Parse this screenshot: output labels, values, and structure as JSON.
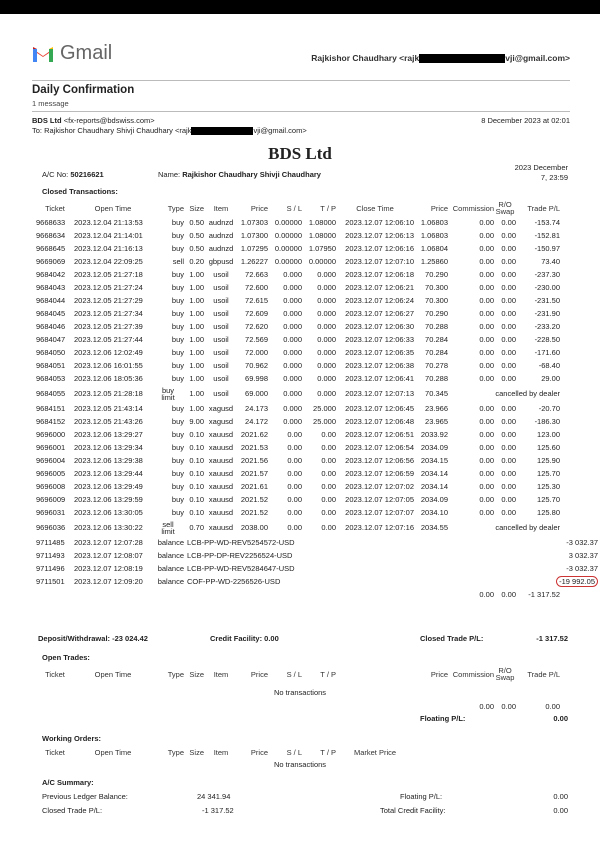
{
  "gmail": {
    "logo_text": "Gmail",
    "account": "Rajkishor Chaudhary <rajk",
    "account_end": "vji@gmail.com>"
  },
  "email": {
    "subject": "Daily Confirmation",
    "count": "1 message",
    "from_name": "BDS Ltd",
    "from_addr": "<fx-reports@bdswiss.com>",
    "to": "To: Rajkishor Chaudhary Shivji Chaudhary <rajk",
    "to_end": "vji@gmail.com>",
    "date": "8 December 2023 at 02:01"
  },
  "report": {
    "title": "BDS Ltd",
    "ac_label": "A/C No:",
    "ac_no": "50216621",
    "name_label": "Name:",
    "name": "Rajkishor Chaudhary Shivji Chaudhary",
    "date_line1": "2023 December",
    "date_line2": "7, 23:59"
  },
  "closed": {
    "heading": "Closed Transactions:",
    "headers": [
      "Ticket",
      "Open Time",
      "Type",
      "Size",
      "Item",
      "Price",
      "S / L",
      "T / P",
      "Close Time",
      "Price",
      "Commission",
      "R/O Swap",
      "Trade P/L"
    ],
    "rows": [
      [
        "9668633",
        "2023.12.04 21:13:53",
        "buy",
        "0.50",
        "audnzd",
        "1.07303",
        "0.00000",
        "1.08000",
        "2023.12.07 12:06:10",
        "1.06803",
        "0.00",
        "0.00",
        "-153.74"
      ],
      [
        "9668634",
        "2023.12.04 21:14:01",
        "buy",
        "0.50",
        "audnzd",
        "1.07300",
        "0.00000",
        "1.08000",
        "2023.12.07 12:06:13",
        "1.06803",
        "0.00",
        "0.00",
        "-152.81"
      ],
      [
        "9668645",
        "2023.12.04 21:16:13",
        "buy",
        "0.50",
        "audnzd",
        "1.07295",
        "0.00000",
        "1.07950",
        "2023.12.07 12:06:16",
        "1.06804",
        "0.00",
        "0.00",
        "-150.97"
      ],
      [
        "9669069",
        "2023.12.04 22:09:25",
        "sell",
        "0.20",
        "gbpusd",
        "1.26227",
        "0.00000",
        "0.00000",
        "2023.12.07 12:07:10",
        "1.25860",
        "0.00",
        "0.00",
        "73.40"
      ],
      [
        "9684042",
        "2023.12.05 21:27:18",
        "buy",
        "1.00",
        "usoil",
        "72.663",
        "0.000",
        "0.000",
        "2023.12.07 12:06:18",
        "70.290",
        "0.00",
        "0.00",
        "-237.30"
      ],
      [
        "9684043",
        "2023.12.05 21:27:24",
        "buy",
        "1.00",
        "usoil",
        "72.600",
        "0.000",
        "0.000",
        "2023.12.07 12:06:21",
        "70.300",
        "0.00",
        "0.00",
        "-230.00"
      ],
      [
        "9684044",
        "2023.12.05 21:27:29",
        "buy",
        "1.00",
        "usoil",
        "72.615",
        "0.000",
        "0.000",
        "2023.12.07 12:06:24",
        "70.300",
        "0.00",
        "0.00",
        "-231.50"
      ],
      [
        "9684045",
        "2023.12.05 21:27:34",
        "buy",
        "1.00",
        "usoil",
        "72.609",
        "0.000",
        "0.000",
        "2023.12.07 12:06:27",
        "70.290",
        "0.00",
        "0.00",
        "-231.90"
      ],
      [
        "9684046",
        "2023.12.05 21:27:39",
        "buy",
        "1.00",
        "usoil",
        "72.620",
        "0.000",
        "0.000",
        "2023.12.07 12:06:30",
        "70.288",
        "0.00",
        "0.00",
        "-233.20"
      ],
      [
        "9684047",
        "2023.12.05 21:27:44",
        "buy",
        "1.00",
        "usoil",
        "72.569",
        "0.000",
        "0.000",
        "2023.12.07 12:06:33",
        "70.284",
        "0.00",
        "0.00",
        "-228.50"
      ],
      [
        "9684050",
        "2023.12.06 12:02:49",
        "buy",
        "1.00",
        "usoil",
        "72.000",
        "0.000",
        "0.000",
        "2023.12.07 12:06:35",
        "70.284",
        "0.00",
        "0.00",
        "-171.60"
      ],
      [
        "9684051",
        "2023.12.06 16:01:55",
        "buy",
        "1.00",
        "usoil",
        "70.962",
        "0.000",
        "0.000",
        "2023.12.07 12:06:38",
        "70.278",
        "0.00",
        "0.00",
        "-68.40"
      ],
      [
        "9684053",
        "2023.12.06 18:05:36",
        "buy",
        "1.00",
        "usoil",
        "69.998",
        "0.000",
        "0.000",
        "2023.12.07 12:06:41",
        "70.288",
        "0.00",
        "0.00",
        "29.00"
      ],
      [
        "9684055",
        "2023.12.05 21:28:18",
        "buy limit",
        "1.00",
        "usoil",
        "69.000",
        "0.000",
        "0.000",
        "2023.12.07 12:07:13",
        "70.345",
        "cancelled by dealer"
      ],
      [
        "9684151",
        "2023.12.05 21:43:14",
        "buy",
        "1.00",
        "xagusd",
        "24.173",
        "0.000",
        "25.000",
        "2023.12.07 12:06:45",
        "23.966",
        "0.00",
        "0.00",
        "-20.70"
      ],
      [
        "9684152",
        "2023.12.05 21:43:26",
        "buy",
        "9.00",
        "xagusd",
        "24.172",
        "0.000",
        "25.000",
        "2023.12.07 12:06:48",
        "23.965",
        "0.00",
        "0.00",
        "-186.30"
      ],
      [
        "9696000",
        "2023.12.06 13:29:27",
        "buy",
        "0.10",
        "xauusd",
        "2021.62",
        "0.00",
        "0.00",
        "2023.12.07 12:06:51",
        "2033.92",
        "0.00",
        "0.00",
        "123.00"
      ],
      [
        "9696001",
        "2023.12.06 13:29:34",
        "buy",
        "0.10",
        "xauusd",
        "2021.53",
        "0.00",
        "0.00",
        "2023.12.07 12:06:54",
        "2034.09",
        "0.00",
        "0.00",
        "125.60"
      ],
      [
        "9696004",
        "2023.12.06 13:29:38",
        "buy",
        "0.10",
        "xauusd",
        "2021.56",
        "0.00",
        "0.00",
        "2023.12.07 12:06:56",
        "2034.15",
        "0.00",
        "0.00",
        "125.90"
      ],
      [
        "9696005",
        "2023.12.06 13:29:44",
        "buy",
        "0.10",
        "xauusd",
        "2021.57",
        "0.00",
        "0.00",
        "2023.12.07 12:06:59",
        "2034.14",
        "0.00",
        "0.00",
        "125.70"
      ],
      [
        "9696008",
        "2023.12.06 13:29:49",
        "buy",
        "0.10",
        "xauusd",
        "2021.61",
        "0.00",
        "0.00",
        "2023.12.07 12:07:02",
        "2034.14",
        "0.00",
        "0.00",
        "125.30"
      ],
      [
        "9696009",
        "2023.12.06 13:29:59",
        "buy",
        "0.10",
        "xauusd",
        "2021.52",
        "0.00",
        "0.00",
        "2023.12.07 12:07:05",
        "2034.09",
        "0.00",
        "0.00",
        "125.70"
      ],
      [
        "9696031",
        "2023.12.06 13:30:05",
        "buy",
        "0.10",
        "xauusd",
        "2021.52",
        "0.00",
        "0.00",
        "2023.12.07 12:07:07",
        "2034.10",
        "0.00",
        "0.00",
        "125.80"
      ],
      [
        "9696036",
        "2023.12.06 13:30:22",
        "sell limit",
        "0.70",
        "xauusd",
        "2038.00",
        "0.00",
        "0.00",
        "2023.12.07 12:07:16",
        "2034.55",
        "cancelled by dealer"
      ]
    ],
    "balance_rows": [
      [
        "9711485",
        "2023.12.07 12:07:28",
        "balance",
        "LCB-PP-WD-REV5254572-USD",
        "-3 032.37"
      ],
      [
        "9711493",
        "2023.12.07 12:08:07",
        "balance",
        "LCB-PP-DP-REV2256524-USD",
        "3 032.37"
      ],
      [
        "9711496",
        "2023.12.07 12:08:19",
        "balance",
        "LCB-PP-WD-REV5284647-USD",
        "-3 032.37"
      ],
      [
        "9711501",
        "2023.12.07 12:09:20",
        "balance",
        "COF-PP-WD-2256526-USD",
        "-19 992.05"
      ]
    ],
    "totals": [
      "0.00",
      "0.00",
      "-1 317.52"
    ],
    "deposit": "Deposit/Withdrawal: -23 024.42",
    "credit": "Credit Facility: 0.00",
    "closed_pl_label": "Closed Trade P/L:",
    "closed_pl": "-1 317.52"
  },
  "open": {
    "heading": "Open Trades:",
    "headers": [
      "Ticket",
      "Open Time",
      "Type",
      "Size",
      "Item",
      "Price",
      "S / L",
      "T / P",
      "Price",
      "Commission",
      "R/O Swap",
      "Trade P/L"
    ],
    "empty": "No transactions",
    "totals": [
      "0.00",
      "0.00",
      "0.00"
    ],
    "floating_label": "Floating P/L:",
    "floating": "0.00"
  },
  "working": {
    "heading": "Working Orders:",
    "headers": [
      "Ticket",
      "Open Time",
      "Type",
      "Size",
      "Item",
      "Price",
      "S / L",
      "T / P",
      "Market Price"
    ],
    "empty": "No transactions"
  },
  "summary": {
    "heading": "A/C Summary:",
    "prev_label": "Previous Ledger Balance:",
    "prev": "24 341.94",
    "closed_label": "Closed Trade P/L:",
    "closed": "-1 317.52",
    "floating_label": "Floating P/L:",
    "floating": "0.00",
    "credit_label": "Total Credit Facility:",
    "credit": "0.00"
  },
  "colors": {
    "highlight_circle": "#cc3333"
  }
}
